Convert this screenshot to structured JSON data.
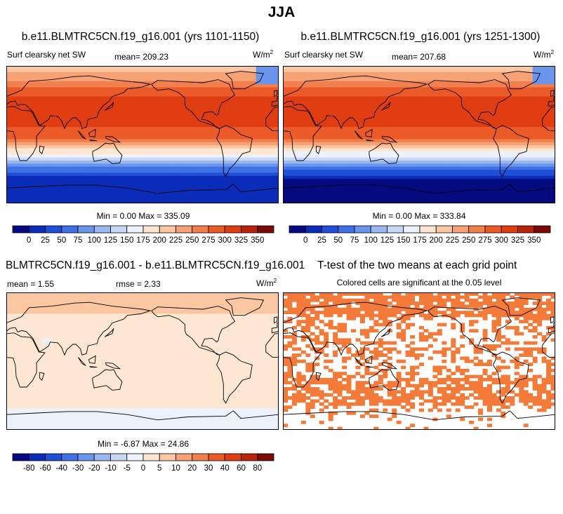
{
  "main_title": "JJA",
  "colors": {
    "diverging": [
      "#050a80",
      "#0a2cb8",
      "#1f4fd6",
      "#3f70e6",
      "#6a95ec",
      "#9ab8f0",
      "#c6d8f5",
      "#ecf1fb",
      "#fde7d3",
      "#fbc7a2",
      "#f7a274",
      "#f27f4e",
      "#ec5a28",
      "#e03d12",
      "#b9230a",
      "#7a0a04"
    ],
    "land": "#000000",
    "significant": "#f47a3a"
  },
  "panels": [
    {
      "title": "b.e11.BLMTRC5CN.f19_g16.001 (yrs 1101-1150)",
      "left_label": "Surf clearsky net SW",
      "center_label": "mean= 209.23",
      "units_base": "W/m",
      "units_exp": "2",
      "minmax": "Min =   0.00 Max = 335.09"
    },
    {
      "title": "b.e11.BLMTRC5CN.f19_g16.001 (yrs 1251-1300)",
      "left_label": "Surf clearsky net SW",
      "center_label": "mean= 207.68",
      "units_base": "W/m",
      "units_exp": "2",
      "minmax": "Min =   0.00 Max = 333.84"
    },
    {
      "title": "BLMTRC5CN.f19_g16.001 - b.e11.BLMTRC5CN.f19_g16.001",
      "left_label": "mean =   1.55",
      "center_label": "rmse =   2.33",
      "units_base": "W/m",
      "units_exp": "2",
      "minmax": "Min =  -6.87 Max =  24.86"
    },
    {
      "title": "T-test of the two means at each grid point",
      "subtitle": "Colored cells are significant at the 0.05 level"
    }
  ],
  "chart_data": [
    {
      "type": "heatmap",
      "variable": "Surf clearsky net SW",
      "season": "JJA",
      "mean": 209.23,
      "min": 0.0,
      "max": 335.09,
      "colorbar_levels": [
        0,
        25,
        50,
        75,
        100,
        125,
        150,
        175,
        200,
        225,
        250,
        275,
        300,
        325,
        350
      ],
      "colorbar_tick_labels": [
        "0",
        "25",
        "50",
        "75",
        "100",
        "125",
        "150",
        "175",
        "200",
        "225",
        "250",
        "275",
        "300",
        "325",
        "350"
      ]
    },
    {
      "type": "heatmap",
      "variable": "Surf clearsky net SW",
      "season": "JJA",
      "mean": 207.68,
      "min": 0.0,
      "max": 333.84,
      "colorbar_levels": [
        0,
        25,
        50,
        75,
        100,
        125,
        150,
        175,
        200,
        225,
        250,
        275,
        300,
        325,
        350
      ],
      "colorbar_tick_labels": [
        "0",
        "25",
        "50",
        "75",
        "100",
        "125",
        "150",
        "175",
        "200",
        "225",
        "250",
        "275",
        "300",
        "325",
        "350"
      ]
    },
    {
      "type": "heatmap",
      "mean": 1.55,
      "rmse": 2.33,
      "min": -6.87,
      "max": 24.86,
      "colorbar_levels": [
        -80,
        -60,
        -40,
        -30,
        -20,
        -10,
        -5,
        0,
        5,
        10,
        20,
        30,
        40,
        60,
        80
      ],
      "colorbar_tick_labels": [
        "-80",
        "-60",
        "-40",
        "-30",
        "-20",
        "-10",
        "-5",
        "0",
        "5",
        "10",
        "20",
        "30",
        "40",
        "60",
        "80"
      ]
    },
    {
      "type": "heatmap",
      "significance_level": 0.05
    }
  ]
}
